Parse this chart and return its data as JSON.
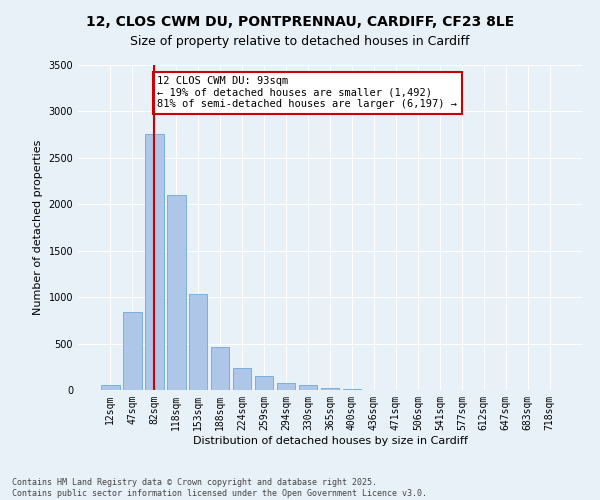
{
  "title_line1": "12, CLOS CWM DU, PONTPRENNAU, CARDIFF, CF23 8LE",
  "title_line2": "Size of property relative to detached houses in Cardiff",
  "xlabel": "Distribution of detached houses by size in Cardiff",
  "ylabel": "Number of detached properties",
  "categories": [
    "12sqm",
    "47sqm",
    "82sqm",
    "118sqm",
    "153sqm",
    "188sqm",
    "224sqm",
    "259sqm",
    "294sqm",
    "330sqm",
    "365sqm",
    "400sqm",
    "436sqm",
    "471sqm",
    "506sqm",
    "541sqm",
    "577sqm",
    "612sqm",
    "647sqm",
    "683sqm",
    "718sqm"
  ],
  "values": [
    55,
    840,
    2760,
    2100,
    1035,
    460,
    235,
    155,
    80,
    50,
    25,
    15,
    5,
    2,
    1,
    0,
    0,
    0,
    0,
    0,
    0
  ],
  "bar_color": "#aec6e8",
  "bar_edgecolor": "#5a9fd4",
  "vline_x": 2,
  "vline_color": "#cc0000",
  "annotation_text": "12 CLOS CWM DU: 93sqm\n← 19% of detached houses are smaller (1,492)\n81% of semi-detached houses are larger (6,197) →",
  "annotation_box_color": "#ffffff",
  "annotation_box_edgecolor": "#cc0000",
  "ylim": [
    0,
    3500
  ],
  "yticks": [
    0,
    500,
    1000,
    1500,
    2000,
    2500,
    3000,
    3500
  ],
  "bg_color": "#e8f0f8",
  "grid_color": "#ffffff",
  "footer_line1": "Contains HM Land Registry data © Crown copyright and database right 2025.",
  "footer_line2": "Contains public sector information licensed under the Open Government Licence v3.0.",
  "title_fontsize": 10,
  "axis_label_fontsize": 8,
  "tick_fontsize": 7,
  "annotation_fontsize": 7.5,
  "footer_fontsize": 6
}
